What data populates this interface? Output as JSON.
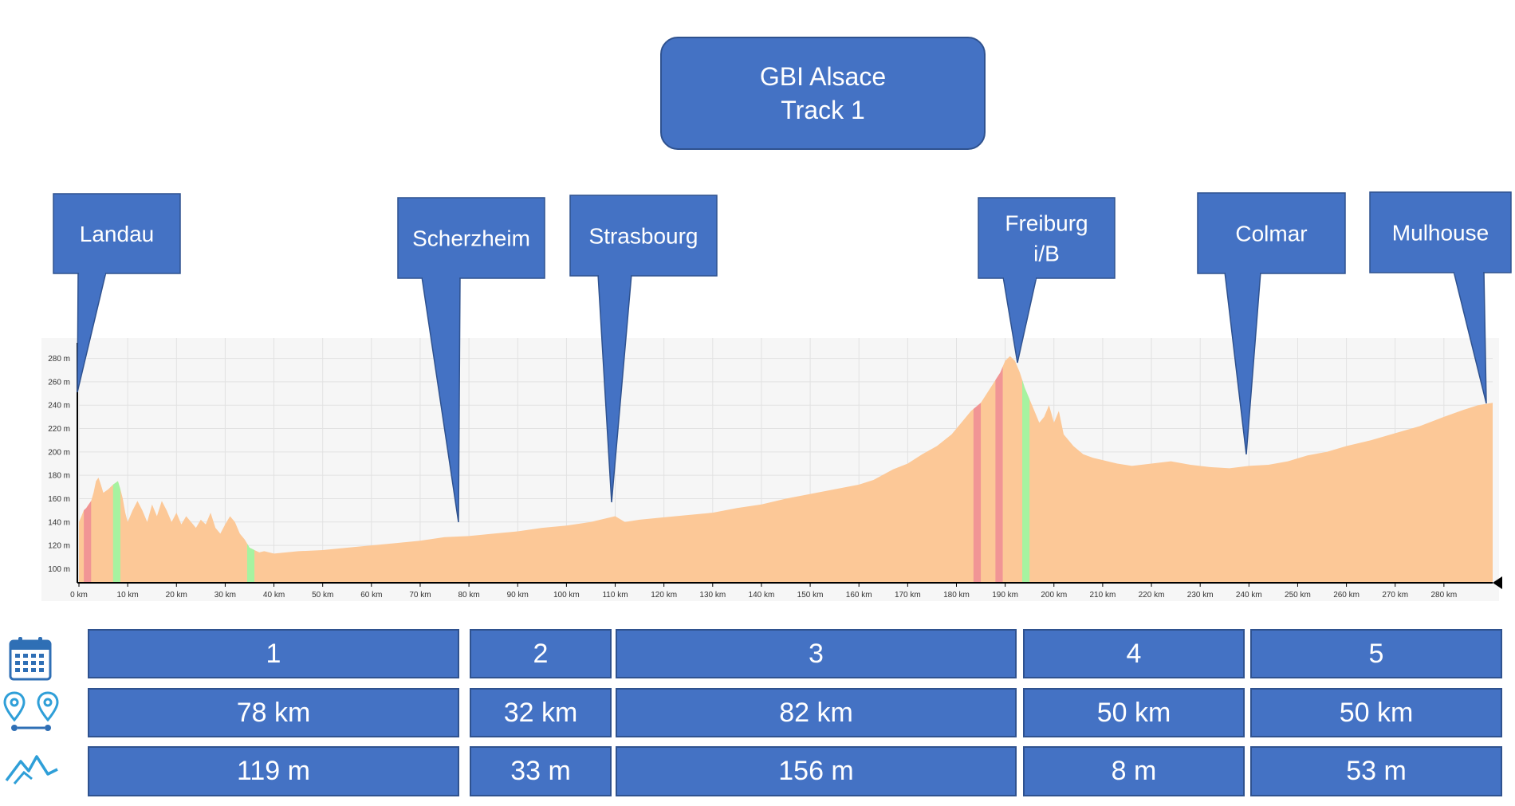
{
  "title": {
    "line1": "GBI Alsace",
    "line2": "Track 1"
  },
  "chart_data": {
    "type": "area",
    "x_unit": "km",
    "y_unit": "m",
    "xlim": [
      0,
      290
    ],
    "ylim": [
      88,
      292
    ],
    "x_ticks": [
      0,
      10,
      20,
      30,
      40,
      50,
      60,
      70,
      80,
      90,
      100,
      110,
      120,
      130,
      140,
      150,
      160,
      170,
      180,
      190,
      200,
      210,
      220,
      230,
      240,
      250,
      260,
      270,
      280
    ],
    "y_ticks": [
      100,
      120,
      140,
      160,
      180,
      200,
      220,
      240,
      260,
      280
    ],
    "grid": true,
    "profile": [
      [
        0,
        140
      ],
      [
        0.5,
        145
      ],
      [
        1,
        150
      ],
      [
        1.5,
        152
      ],
      [
        2,
        155
      ],
      [
        2.5,
        158
      ],
      [
        3,
        165
      ],
      [
        3.5,
        175
      ],
      [
        4,
        178
      ],
      [
        4.5,
        172
      ],
      [
        5,
        165
      ],
      [
        6,
        168
      ],
      [
        7,
        172
      ],
      [
        8,
        175
      ],
      [
        8.5,
        168
      ],
      [
        9,
        160
      ],
      [
        9.5,
        148
      ],
      [
        10,
        140
      ],
      [
        11,
        150
      ],
      [
        12,
        158
      ],
      [
        13,
        150
      ],
      [
        14,
        140
      ],
      [
        15,
        155
      ],
      [
        16,
        145
      ],
      [
        17,
        158
      ],
      [
        18,
        150
      ],
      [
        19,
        140
      ],
      [
        20,
        148
      ],
      [
        21,
        138
      ],
      [
        22,
        145
      ],
      [
        23,
        140
      ],
      [
        24,
        135
      ],
      [
        25,
        142
      ],
      [
        26,
        138
      ],
      [
        27,
        148
      ],
      [
        28,
        135
      ],
      [
        29,
        130
      ],
      [
        30,
        138
      ],
      [
        31,
        145
      ],
      [
        32,
        140
      ],
      [
        33,
        130
      ],
      [
        34,
        125
      ],
      [
        35,
        118
      ],
      [
        36,
        116
      ],
      [
        37,
        114
      ],
      [
        38,
        115
      ],
      [
        40,
        113
      ],
      [
        45,
        115
      ],
      [
        50,
        116
      ],
      [
        55,
        118
      ],
      [
        60,
        120
      ],
      [
        65,
        122
      ],
      [
        70,
        124
      ],
      [
        75,
        127
      ],
      [
        80,
        128
      ],
      [
        85,
        130
      ],
      [
        90,
        132
      ],
      [
        95,
        135
      ],
      [
        100,
        137
      ],
      [
        105,
        140
      ],
      [
        108,
        143
      ],
      [
        110,
        145
      ],
      [
        112,
        140
      ],
      [
        115,
        142
      ],
      [
        120,
        144
      ],
      [
        125,
        146
      ],
      [
        130,
        148
      ],
      [
        135,
        152
      ],
      [
        140,
        155
      ],
      [
        145,
        160
      ],
      [
        150,
        164
      ],
      [
        155,
        168
      ],
      [
        160,
        172
      ],
      [
        163,
        176
      ],
      [
        167,
        185
      ],
      [
        170,
        190
      ],
      [
        173,
        198
      ],
      [
        176,
        205
      ],
      [
        179,
        215
      ],
      [
        181,
        225
      ],
      [
        183,
        235
      ],
      [
        185,
        242
      ],
      [
        187,
        255
      ],
      [
        189,
        268
      ],
      [
        190,
        278
      ],
      [
        191,
        282
      ],
      [
        192,
        278
      ],
      [
        193,
        268
      ],
      [
        194,
        255
      ],
      [
        195,
        245
      ],
      [
        196,
        235
      ],
      [
        197,
        225
      ],
      [
        198,
        230
      ],
      [
        199,
        240
      ],
      [
        200,
        225
      ],
      [
        201,
        235
      ],
      [
        202,
        215
      ],
      [
        204,
        205
      ],
      [
        206,
        198
      ],
      [
        208,
        195
      ],
      [
        210,
        193
      ],
      [
        213,
        190
      ],
      [
        216,
        188
      ],
      [
        220,
        190
      ],
      [
        224,
        192
      ],
      [
        228,
        189
      ],
      [
        232,
        187
      ],
      [
        236,
        186
      ],
      [
        240,
        188
      ],
      [
        244,
        189
      ],
      [
        248,
        192
      ],
      [
        252,
        197
      ],
      [
        256,
        200
      ],
      [
        260,
        205
      ],
      [
        265,
        210
      ],
      [
        270,
        216
      ],
      [
        275,
        222
      ],
      [
        280,
        230
      ],
      [
        284,
        236
      ],
      [
        287,
        240
      ],
      [
        290,
        242
      ]
    ],
    "gradient_bands": [
      {
        "from": 1,
        "to": 2.5,
        "grade": "steep-climb"
      },
      {
        "from": 7,
        "to": 8.5,
        "grade": "descent"
      },
      {
        "from": 34.5,
        "to": 36,
        "grade": "descent"
      },
      {
        "from": 183.5,
        "to": 185,
        "grade": "steep-climb"
      },
      {
        "from": 188,
        "to": 189.5,
        "grade": "steep-climb"
      },
      {
        "from": 193.5,
        "to": 195,
        "grade": "descent"
      }
    ],
    "places": [
      {
        "name": "Landau",
        "km": 0
      },
      {
        "name": "Scherzheim",
        "km": 78
      },
      {
        "name": "Strasbourg",
        "km": 110
      },
      {
        "name": "Freiburg i/B",
        "km": 192
      },
      {
        "name": "Colmar",
        "km": 240
      },
      {
        "name": "Mulhouse",
        "km": 289
      }
    ],
    "colors": {
      "area": "#FCC897",
      "steep-climb": "#F19595",
      "descent": "#A6F3A0",
      "callout": "#4472C4",
      "callout_border": "#2F528F"
    }
  },
  "callouts": [
    {
      "lines": [
        "Landau"
      ]
    },
    {
      "lines": [
        "Scherzheim"
      ]
    },
    {
      "lines": [
        "Strasbourg"
      ]
    },
    {
      "lines": [
        "Freiburg",
        "i/B"
      ]
    },
    {
      "lines": [
        "Colmar"
      ]
    },
    {
      "lines": [
        "Mulhouse"
      ]
    }
  ],
  "stages": [
    {
      "day": "1",
      "distance": "78 km",
      "elevation": "119 m"
    },
    {
      "day": "2",
      "distance": "32 km",
      "elevation": "33 m"
    },
    {
      "day": "3",
      "distance": "82 km",
      "elevation": "156 m"
    },
    {
      "day": "4",
      "distance": "50 km",
      "elevation": "8 m"
    },
    {
      "day": "5",
      "distance": "50 km",
      "elevation": "53 m"
    }
  ],
  "icons": {
    "day": "calendar-icon",
    "distance": "route-pins-icon",
    "elevation": "mountain-icon"
  },
  "accent_color": "#4472C4"
}
